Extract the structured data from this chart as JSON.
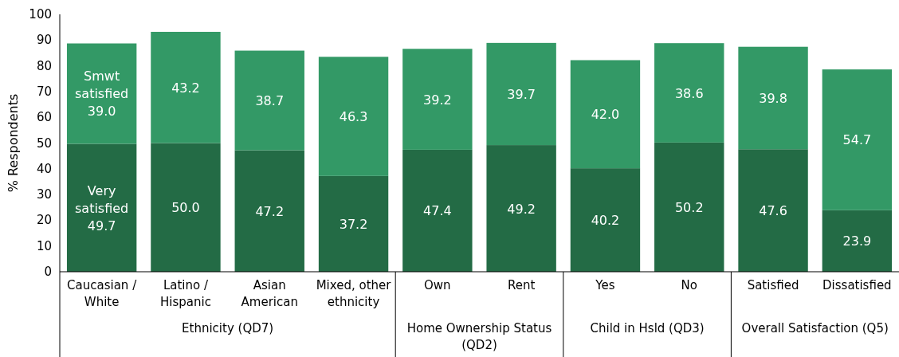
{
  "chart_data": {
    "type": "bar",
    "ylabel": "% Respondents",
    "stacked": true,
    "categories": [
      "Caucasian / White",
      "Latino / Hispanic",
      "Asian American",
      "Mixed, other ethnicity",
      "Own",
      "Rent",
      "Yes",
      "No",
      "Satisfied",
      "Dissatisfied"
    ],
    "series": [
      {
        "name": "Very satisfied",
        "color": "#236b45",
        "values": [
          49.7,
          50.0,
          47.2,
          37.2,
          47.4,
          49.2,
          40.2,
          50.2,
          47.6,
          23.9
        ],
        "value_labels": [
          "49.7",
          "50.0",
          "47.2",
          "37.2",
          "47.4",
          "49.2",
          "40.2",
          "50.2",
          "47.6",
          "23.9"
        ]
      },
      {
        "name": "Smwt satisfied",
        "color": "#339966",
        "values": [
          39.0,
          43.2,
          38.7,
          46.3,
          39.2,
          39.7,
          42.0,
          38.6,
          39.8,
          54.7
        ],
        "value_labels": [
          "39.0",
          "43.2",
          "38.7",
          "46.3",
          "39.2",
          "39.7",
          "42.0",
          "38.6",
          "39.8",
          "54.7"
        ]
      }
    ],
    "ylim": [
      0,
      100
    ],
    "yticks": [
      0,
      10,
      20,
      30,
      40,
      50,
      60,
      70,
      80,
      90,
      100
    ],
    "grid": false,
    "annotations": [
      "Ethnicity (QD7)",
      "Home Ownership Status (QD2)",
      "Child in Hsld (QD3)",
      "Overall Satisfaction (Q5)"
    ]
  }
}
